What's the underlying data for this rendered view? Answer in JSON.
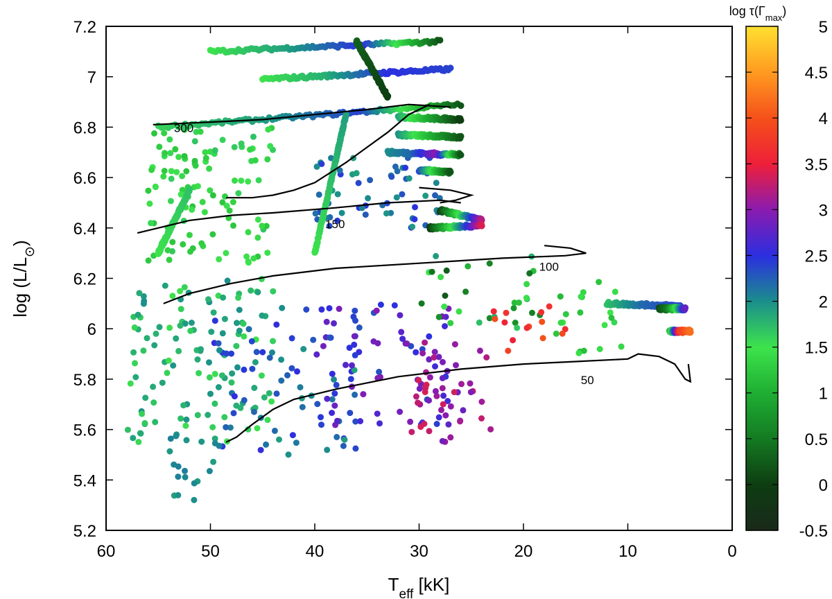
{
  "chart_data": {
    "type": "scatter",
    "xlabel": "T_eff [kK]",
    "ylabel": "log (L/L_⊙)",
    "xlim": [
      60,
      0
    ],
    "ylim": [
      5.2,
      7.2
    ],
    "x_ticks": [
      "60",
      "50",
      "40",
      "30",
      "20",
      "10",
      "0"
    ],
    "y_ticks": [
      "5.2",
      "5.4",
      "5.6",
      "5.8",
      "6",
      "6.2",
      "6.4",
      "6.6",
      "6.8",
      "7",
      "7.2"
    ],
    "colorbar": {
      "title": "log τ(Γ_max)",
      "range": [
        -0.5,
        5
      ],
      "ticks": [
        "-0.5",
        "0",
        "0.5",
        "1",
        "1.5",
        "2",
        "2.5",
        "3",
        "3.5",
        "4",
        "4.5",
        "5"
      ],
      "stops": [
        {
          "v": -0.5,
          "color": "#1a2a1a"
        },
        {
          "v": 0.0,
          "color": "#0e3d12"
        },
        {
          "v": 0.5,
          "color": "#147a22"
        },
        {
          "v": 1.0,
          "color": "#1fae33"
        },
        {
          "v": 1.5,
          "color": "#3de34c"
        },
        {
          "v": 2.0,
          "color": "#1b8f8b"
        },
        {
          "v": 2.5,
          "color": "#2b2fe0"
        },
        {
          "v": 3.0,
          "color": "#8a1bb0"
        },
        {
          "v": 3.5,
          "color": "#ee1f3a"
        },
        {
          "v": 4.0,
          "color": "#f5501a"
        },
        {
          "v": 4.5,
          "color": "#ff9a20"
        },
        {
          "v": 5.0,
          "color": "#ffe030"
        }
      ]
    },
    "tracks": [
      {
        "label": "300",
        "label_at": [
          53.5,
          6.78
        ],
        "points": [
          [
            55.5,
            6.81
          ],
          [
            50,
            6.82
          ],
          [
            45,
            6.83
          ],
          [
            40,
            6.85
          ],
          [
            35,
            6.87
          ],
          [
            31,
            6.89
          ],
          [
            27,
            6.88
          ]
        ]
      },
      {
        "label": "150",
        "label_at": [
          39.0,
          6.4
        ],
        "points": [
          [
            57,
            6.38
          ],
          [
            55,
            6.4
          ],
          [
            52,
            6.43
          ],
          [
            48,
            6.45
          ],
          [
            44,
            6.46
          ],
          [
            38,
            6.48
          ],
          [
            33,
            6.5
          ],
          [
            28,
            6.51
          ],
          [
            26,
            6.5
          ]
        ]
      },
      {
        "label": "150-loop",
        "points": [
          [
            48.5,
            6.52
          ],
          [
            46,
            6.52
          ],
          [
            44,
            6.53
          ],
          [
            42,
            6.55
          ],
          [
            40,
            6.58
          ],
          [
            37,
            6.66
          ],
          [
            35,
            6.72
          ],
          [
            33,
            6.78
          ],
          [
            31,
            6.85
          ],
          [
            29,
            6.89
          ]
        ]
      },
      {
        "label": "150-hook",
        "points": [
          [
            30,
            6.56
          ],
          [
            27,
            6.55
          ],
          [
            25,
            6.53
          ],
          [
            26.5,
            6.51
          ],
          [
            28,
            6.5
          ]
        ]
      },
      {
        "label": "100",
        "label_at": [
          18.5,
          6.23
        ],
        "points": [
          [
            54.5,
            6.1
          ],
          [
            52,
            6.14
          ],
          [
            48,
            6.18
          ],
          [
            44,
            6.21
          ],
          [
            38,
            6.24
          ],
          [
            30,
            6.26
          ],
          [
            22,
            6.28
          ],
          [
            16,
            6.29
          ],
          [
            14,
            6.3
          ],
          [
            15.5,
            6.32
          ],
          [
            18,
            6.33
          ]
        ]
      },
      {
        "label": "50",
        "label_at": [
          14.5,
          5.78
        ],
        "points": [
          [
            48.5,
            5.55
          ],
          [
            47.5,
            5.57
          ],
          [
            46,
            5.62
          ],
          [
            44,
            5.68
          ],
          [
            42,
            5.72
          ],
          [
            38,
            5.76
          ],
          [
            32,
            5.81
          ],
          [
            26,
            5.84
          ],
          [
            20,
            5.86
          ],
          [
            15,
            5.87
          ],
          [
            10,
            5.88
          ],
          [
            9,
            5.9
          ],
          [
            7,
            5.89
          ],
          [
            5.5,
            5.86
          ],
          [
            4.5,
            5.8
          ],
          [
            4,
            5.79
          ],
          [
            4.2,
            5.86
          ]
        ]
      }
    ],
    "streaks": [
      {
        "from": [
          55,
          6.8
        ],
        "to": [
          26,
          6.89
        ],
        "v": [
          1.6,
          1.9,
          2.4,
          0.2
        ]
      },
      {
        "from": [
          50,
          7.1
        ],
        "to": [
          28,
          7.14
        ],
        "v": [
          1.5,
          1.9,
          2.5,
          0.2
        ]
      },
      {
        "from": [
          45,
          6.99
        ],
        "to": [
          27,
          7.03
        ],
        "v": [
          1.5,
          1.8,
          2.5,
          2.4
        ]
      },
      {
        "from": [
          32,
          6.84
        ],
        "to": [
          26,
          6.83
        ],
        "v": [
          1.9,
          0.0
        ]
      },
      {
        "from": [
          32,
          6.77
        ],
        "to": [
          26,
          6.76
        ],
        "v": [
          2.0,
          0.2
        ]
      },
      {
        "from": [
          33,
          6.7
        ],
        "to": [
          26,
          6.69
        ],
        "v": [
          2.0,
          2.2,
          3.0,
          0.2
        ]
      },
      {
        "from": [
          30,
          6.63
        ],
        "to": [
          27,
          6.62
        ],
        "v": [
          2.4,
          0.2
        ]
      },
      {
        "from": [
          28,
          6.47
        ],
        "to": [
          24,
          6.43
        ],
        "v": [
          0.0,
          3.2
        ]
      },
      {
        "from": [
          29,
          6.4
        ],
        "to": [
          24,
          6.41
        ],
        "v": [
          0.0,
          3.4
        ]
      },
      {
        "from": [
          12,
          6.1
        ],
        "to": [
          5,
          6.09
        ],
        "v": [
          1.7,
          2.2,
          2.4
        ]
      },
      {
        "from": [
          7,
          6.08
        ],
        "to": [
          4.5,
          6.08
        ],
        "v": [
          0.1,
          0.5,
          1.5,
          2.8
        ]
      },
      {
        "from": [
          6,
          5.99
        ],
        "to": [
          4,
          5.99
        ],
        "v": [
          1.0,
          3.8,
          4.2
        ]
      },
      {
        "from": [
          55,
          6.3
        ],
        "to": [
          52,
          6.55
        ],
        "v": [
          1.5,
          1.7
        ]
      },
      {
        "from": [
          36,
          7.14
        ],
        "to": [
          33,
          6.92
        ],
        "v": [
          0.3,
          0.0
        ]
      },
      {
        "from": [
          40,
          6.3
        ],
        "to": [
          37,
          6.85
        ],
        "v": [
          1.5,
          1.9
        ]
      }
    ],
    "clusters": [
      {
        "x": [
          44,
          58
        ],
        "y": [
          5.55,
          6.2
        ],
        "n": 120,
        "v": [
          1.5,
          2.0
        ]
      },
      {
        "x": [
          44,
          56
        ],
        "y": [
          6.25,
          6.8
        ],
        "n": 110,
        "v": [
          1.2,
          1.7
        ]
      },
      {
        "x": [
          36,
          50
        ],
        "y": [
          5.5,
          6.1
        ],
        "n": 70,
        "v": [
          1.9,
          2.6
        ]
      },
      {
        "x": [
          27,
          40
        ],
        "y": [
          5.6,
          6.1
        ],
        "n": 70,
        "v": [
          2.3,
          3.0
        ]
      },
      {
        "x": [
          23,
          31
        ],
        "y": [
          5.55,
          5.95
        ],
        "n": 50,
        "v": [
          2.8,
          3.4
        ]
      },
      {
        "x": [
          28,
          40
        ],
        "y": [
          6.4,
          6.7
        ],
        "n": 60,
        "v": [
          1.9,
          2.5
        ]
      },
      {
        "x": [
          17,
          30
        ],
        "y": [
          6.0,
          6.3
        ],
        "n": 30,
        "v": [
          0.2,
          2.0
        ]
      },
      {
        "x": [
          16,
          23
        ],
        "y": [
          5.9,
          6.1
        ],
        "n": 14,
        "v": [
          3.5,
          4.0
        ]
      },
      {
        "x": [
          10,
          17
        ],
        "y": [
          5.85,
          6.2
        ],
        "n": 20,
        "v": [
          1.0,
          1.6
        ]
      },
      {
        "x": [
          49,
          54
        ],
        "y": [
          5.3,
          5.6
        ],
        "n": 18,
        "v": [
          1.9,
          2.1
        ]
      }
    ]
  }
}
